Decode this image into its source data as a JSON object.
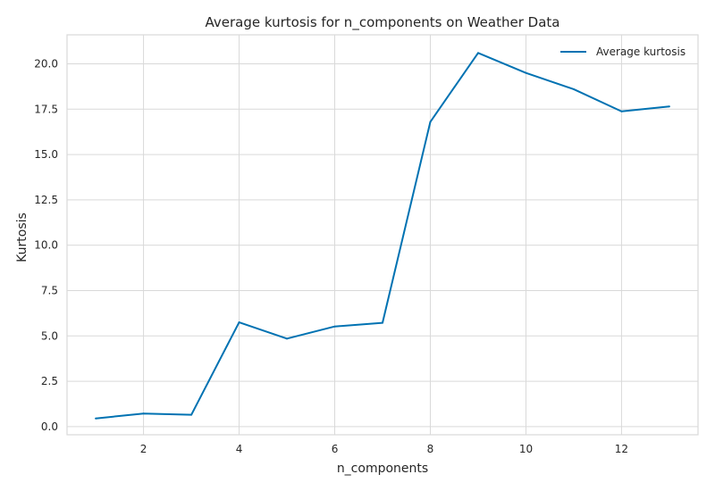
{
  "chart_data": {
    "type": "line",
    "title": "Average kurtosis for n_components on Weather Data",
    "xlabel": "n_components",
    "ylabel": "Kurtosis",
    "x": [
      1,
      2,
      3,
      4,
      5,
      6,
      7,
      8,
      9,
      10,
      11,
      12,
      13
    ],
    "series": [
      {
        "name": "Average kurtosis",
        "color": "#0072B2",
        "values": [
          0.45,
          0.72,
          0.65,
          5.75,
          4.85,
          5.52,
          5.72,
          16.8,
          20.6,
          19.5,
          18.6,
          17.38,
          17.65
        ]
      }
    ],
    "xlim": [
      0.4,
      13.6
    ],
    "ylim": [
      -0.45,
      21.6
    ],
    "xticks": [
      2,
      4,
      6,
      8,
      10,
      12
    ],
    "yticks": [
      0.0,
      2.5,
      5.0,
      7.5,
      10.0,
      12.5,
      15.0,
      17.5,
      20.0
    ],
    "ytick_labels": [
      "0.0",
      "2.5",
      "5.0",
      "7.5",
      "10.0",
      "12.5",
      "15.0",
      "17.5",
      "20.0"
    ],
    "grid": true,
    "legend_position": "top-right",
    "colors": {
      "grid": "#d9d9d9",
      "frame": "#d9d9d9",
      "text": "#262626"
    }
  }
}
